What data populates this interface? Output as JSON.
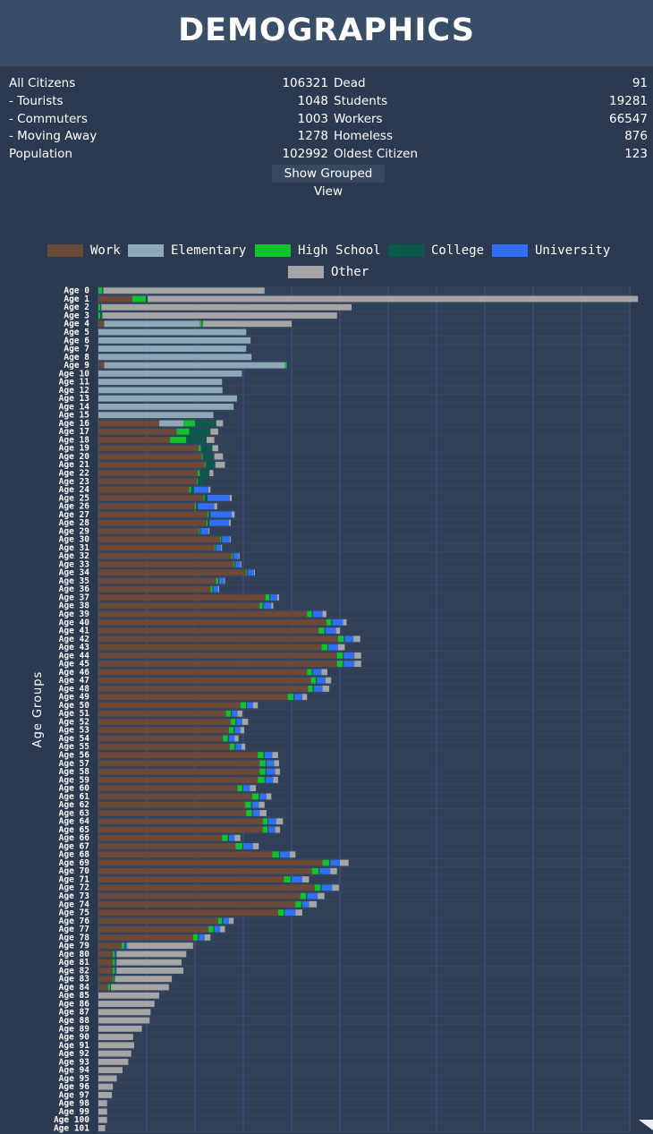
{
  "header": {
    "title": "DEMOGRAPHICS"
  },
  "stats": {
    "left": [
      {
        "label": "All Citizens",
        "value": "106321"
      },
      {
        "label": "- Tourists",
        "value": "1048"
      },
      {
        "label": "- Commuters",
        "value": "1003"
      },
      {
        "label": "- Moving Away",
        "value": "1278"
      },
      {
        "label": "Population",
        "value": "102992"
      }
    ],
    "right": [
      {
        "label": "Dead",
        "value": "91"
      },
      {
        "label": "Students",
        "value": "19281"
      },
      {
        "label": "Workers",
        "value": "66547"
      },
      {
        "label": "Homeless",
        "value": "876"
      },
      {
        "label": "Oldest Citizen",
        "value": "123"
      }
    ]
  },
  "grouped_button": "Show Grouped View",
  "colors": {
    "work": "#6b4a3a",
    "elementary": "#8fa8b8",
    "highschool": "#0fc32e",
    "college": "#0c5a4c",
    "university": "#2f6ef5",
    "other": "#a5a5a5"
  },
  "chart_data": {
    "type": "bar",
    "orientation": "horizontal",
    "stacked": true,
    "ylabel": "Age Groups",
    "xlim": [
      0,
      1100
    ],
    "grid": true,
    "legend_position": "top",
    "series_names": [
      "Work",
      "Elementary",
      "High School",
      "College",
      "University",
      "Other"
    ],
    "categories": [
      "Age 0",
      "Age 1",
      "Age 2",
      "Age 3",
      "Age 4",
      "Age 5",
      "Age 6",
      "Age 7",
      "Age 8",
      "Age 9",
      "Age 10",
      "Age 11",
      "Age 12",
      "Age 13",
      "Age 14",
      "Age 15",
      "Age 16",
      "Age 17",
      "Age 18",
      "Age 19",
      "Age 20",
      "Age 21",
      "Age 22",
      "Age 23",
      "Age 24",
      "Age 25",
      "Age 26",
      "Age 27",
      "Age 28",
      "Age 29",
      "Age 30",
      "Age 31",
      "Age 32",
      "Age 33",
      "Age 34",
      "Age 35",
      "Age 36",
      "Age 37",
      "Age 38",
      "Age 39",
      "Age 40",
      "Age 41",
      "Age 42",
      "Age 43",
      "Age 44",
      "Age 45",
      "Age 46",
      "Age 47",
      "Age 48",
      "Age 49",
      "Age 50",
      "Age 51",
      "Age 52",
      "Age 53",
      "Age 54",
      "Age 55",
      "Age 56",
      "Age 57",
      "Age 58",
      "Age 59",
      "Age 60",
      "Age 61",
      "Age 62",
      "Age 63",
      "Age 64",
      "Age 65",
      "Age 66",
      "Age 67",
      "Age 68",
      "Age 69",
      "Age 70",
      "Age 71",
      "Age 72",
      "Age 73",
      "Age 74",
      "Age 75",
      "Age 76",
      "Age 77",
      "Age 78",
      "Age 79",
      "Age 80",
      "Age 81",
      "Age 82",
      "Age 83",
      "Age 84",
      "Age 85",
      "Age 86",
      "Age 87",
      "Age 88",
      "Age 89",
      "Age 90",
      "Age 91",
      "Age 92",
      "Age 93",
      "Age 94",
      "Age 95",
      "Age 96",
      "Age 97",
      "Age 98",
      "Age 99",
      "Age 100",
      "Age 101"
    ],
    "rows": [
      [
        0,
        0,
        8,
        2,
        0,
        334
      ],
      [
        70,
        0,
        28,
        4,
        0,
        1015
      ],
      [
        0,
        0,
        4,
        2,
        0,
        518
      ],
      [
        0,
        0,
        4,
        4,
        0,
        486
      ],
      [
        12,
        198,
        4,
        2,
        0,
        184
      ],
      [
        0,
        306,
        0,
        0,
        0,
        0
      ],
      [
        0,
        315,
        0,
        0,
        0,
        0
      ],
      [
        0,
        306,
        0,
        0,
        0,
        0
      ],
      [
        0,
        317,
        0,
        0,
        0,
        0
      ],
      [
        12,
        374,
        4,
        0,
        0,
        0
      ],
      [
        0,
        297,
        0,
        0,
        0,
        0
      ],
      [
        0,
        256,
        0,
        0,
        0,
        0
      ],
      [
        0,
        257,
        0,
        0,
        0,
        0
      ],
      [
        0,
        287,
        0,
        0,
        0,
        0
      ],
      [
        0,
        280,
        0,
        0,
        0,
        0
      ],
      [
        0,
        238,
        0,
        0,
        0,
        0
      ],
      [
        126,
        50,
        24,
        44,
        0,
        14
      ],
      [
        162,
        0,
        26,
        44,
        0,
        16
      ],
      [
        148,
        0,
        34,
        42,
        0,
        16
      ],
      [
        208,
        0,
        4,
        24,
        0,
        12
      ],
      [
        214,
        0,
        2,
        24,
        0,
        18
      ],
      [
        220,
        0,
        2,
        20,
        0,
        20
      ],
      [
        206,
        0,
        4,
        20,
        0,
        8
      ],
      [
        204,
        0,
        2,
        14,
        0,
        0
      ],
      [
        188,
        0,
        4,
        6,
        30,
        4
      ],
      [
        218,
        0,
        2,
        6,
        46,
        4
      ],
      [
        200,
        0,
        2,
        4,
        34,
        6
      ],
      [
        226,
        0,
        2,
        4,
        44,
        6
      ],
      [
        224,
        0,
        2,
        4,
        40,
        4
      ],
      [
        208,
        0,
        2,
        2,
        16,
        2
      ],
      [
        252,
        0,
        2,
        2,
        16,
        2
      ],
      [
        240,
        0,
        2,
        2,
        10,
        2
      ],
      [
        276,
        0,
        2,
        2,
        10,
        2
      ],
      [
        280,
        0,
        2,
        2,
        10,
        2
      ],
      [
        306,
        0,
        2,
        2,
        12,
        2
      ],
      [
        244,
        0,
        4,
        2,
        10,
        2
      ],
      [
        232,
        0,
        4,
        2,
        10,
        2
      ],
      [
        346,
        0,
        8,
        2,
        14,
        4
      ],
      [
        334,
        0,
        6,
        2,
        16,
        4
      ],
      [
        432,
        0,
        10,
        2,
        20,
        8
      ],
      [
        472,
        0,
        10,
        2,
        22,
        8
      ],
      [
        456,
        0,
        12,
        2,
        22,
        8
      ],
      [
        496,
        0,
        12,
        2,
        18,
        14
      ],
      [
        462,
        0,
        12,
        2,
        20,
        14
      ],
      [
        494,
        0,
        12,
        2,
        22,
        14
      ],
      [
        494,
        0,
        12,
        2,
        22,
        14
      ],
      [
        432,
        0,
        10,
        2,
        18,
        12
      ],
      [
        440,
        0,
        10,
        2,
        18,
        12
      ],
      [
        434,
        0,
        10,
        2,
        18,
        14
      ],
      [
        392,
        0,
        12,
        2,
        16,
        10
      ],
      [
        294,
        0,
        12,
        2,
        12,
        10
      ],
      [
        264,
        0,
        10,
        2,
        12,
        10
      ],
      [
        274,
        0,
        10,
        2,
        12,
        12
      ],
      [
        270,
        0,
        10,
        2,
        12,
        8
      ],
      [
        258,
        0,
        10,
        2,
        12,
        8
      ],
      [
        272,
        0,
        10,
        2,
        12,
        8
      ],
      [
        330,
        0,
        12,
        2,
        16,
        12
      ],
      [
        334,
        0,
        12,
        2,
        16,
        10
      ],
      [
        334,
        0,
        12,
        2,
        18,
        10
      ],
      [
        330,
        0,
        14,
        2,
        16,
        10
      ],
      [
        288,
        0,
        10,
        2,
        14,
        12
      ],
      [
        318,
        0,
        14,
        2,
        14,
        10
      ],
      [
        304,
        0,
        12,
        2,
        14,
        12
      ],
      [
        306,
        0,
        12,
        2,
        14,
        14
      ],
      [
        340,
        0,
        10,
        2,
        16,
        14
      ],
      [
        340,
        0,
        10,
        2,
        14,
        10
      ],
      [
        256,
        0,
        12,
        2,
        12,
        12
      ],
      [
        284,
        0,
        14,
        2,
        20,
        12
      ],
      [
        360,
        0,
        14,
        2,
        20,
        12
      ],
      [
        464,
        0,
        14,
        2,
        20,
        18
      ],
      [
        442,
        0,
        14,
        2,
        22,
        14
      ],
      [
        384,
        0,
        14,
        2,
        22,
        14
      ],
      [
        448,
        0,
        12,
        2,
        22,
        14
      ],
      [
        418,
        0,
        12,
        2,
        22,
        14
      ],
      [
        408,
        0,
        12,
        2,
        14,
        16
      ],
      [
        372,
        0,
        12,
        2,
        22,
        14
      ],
      [
        248,
        0,
        8,
        2,
        12,
        10
      ],
      [
        228,
        0,
        10,
        2,
        12,
        10
      ],
      [
        196,
        0,
        10,
        2,
        12,
        12
      ],
      [
        48,
        0,
        6,
        2,
        4,
        136
      ],
      [
        30,
        0,
        4,
        2,
        2,
        144
      ],
      [
        30,
        0,
        4,
        2,
        2,
        134
      ],
      [
        30,
        0,
        4,
        2,
        2,
        138
      ],
      [
        30,
        0,
        2,
        2,
        0,
        118
      ],
      [
        20,
        0,
        4,
        2,
        0,
        120
      ],
      [
        0,
        0,
        0,
        0,
        0,
        126
      ],
      [
        0,
        0,
        0,
        0,
        0,
        116
      ],
      [
        0,
        0,
        0,
        0,
        0,
        108
      ],
      [
        0,
        0,
        0,
        0,
        0,
        106
      ],
      [
        0,
        0,
        0,
        0,
        0,
        90
      ],
      [
        0,
        0,
        0,
        0,
        0,
        72
      ],
      [
        0,
        0,
        0,
        0,
        0,
        74
      ],
      [
        0,
        0,
        0,
        0,
        0,
        68
      ],
      [
        0,
        0,
        0,
        0,
        0,
        62
      ],
      [
        0,
        0,
        0,
        0,
        0,
        50
      ],
      [
        0,
        0,
        0,
        0,
        0,
        38
      ],
      [
        0,
        0,
        0,
        0,
        0,
        30
      ],
      [
        0,
        0,
        0,
        0,
        0,
        28
      ],
      [
        0,
        0,
        0,
        0,
        0,
        18
      ],
      [
        0,
        0,
        0,
        0,
        0,
        18
      ],
      [
        0,
        0,
        0,
        0,
        0,
        18
      ],
      [
        0,
        0,
        0,
        0,
        0,
        14
      ]
    ]
  }
}
